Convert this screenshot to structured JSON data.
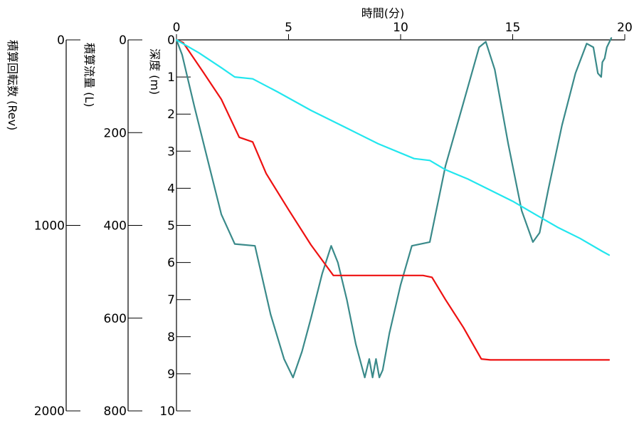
{
  "chart_data": {
    "type": "line",
    "x_axis": {
      "title": "時間(分)",
      "range": [
        0,
        20
      ],
      "ticks": [
        "0",
        "5",
        "10",
        "15",
        "20"
      ]
    },
    "y_axes": [
      {
        "id": "depth",
        "title": "深度 (m)",
        "range": [
          0,
          10
        ],
        "inverted": true,
        "ticks": [
          "0",
          "1",
          "2",
          "3",
          "4",
          "5",
          "6",
          "7",
          "8",
          "9",
          "10"
        ]
      },
      {
        "id": "flow",
        "title": "積算流量 (L)",
        "range": [
          0,
          800
        ],
        "inverted": true,
        "ticks": [
          "0",
          "200",
          "400",
          "600",
          "800"
        ]
      },
      {
        "id": "rev",
        "title": "積算回転数 (Rev)",
        "range": [
          0,
          2000
        ],
        "inverted": true,
        "ticks": [
          "0",
          "1000",
          "2000"
        ]
      }
    ],
    "series": [
      {
        "axis": "depth",
        "color": "#3a8a8a",
        "x": [
          0,
          0.25,
          0.8,
          1.5,
          2.0,
          2.6,
          3.5,
          4.2,
          4.8,
          5.2,
          5.6,
          6.0,
          6.5,
          6.9,
          7.2,
          7.6,
          8.0,
          8.4,
          8.6,
          8.75,
          8.9,
          9.05,
          9.2,
          9.5,
          10.0,
          10.5,
          11.3,
          12.0,
          12.8,
          13.5,
          13.8,
          14.2,
          14.8,
          15.4,
          15.9,
          16.2,
          16.6,
          17.2,
          17.8,
          18.3,
          18.6,
          18.8,
          18.95,
          19.0,
          19.1,
          19.2,
          19.4
        ],
        "y": [
          0,
          0.4,
          1.8,
          3.5,
          4.7,
          5.5,
          5.55,
          7.4,
          8.6,
          9.1,
          8.4,
          7.5,
          6.3,
          5.55,
          6.0,
          7.0,
          8.2,
          9.1,
          8.6,
          9.1,
          8.6,
          9.1,
          8.9,
          7.9,
          6.6,
          5.55,
          5.45,
          3.4,
          1.7,
          0.2,
          0.05,
          0.8,
          2.8,
          4.6,
          5.45,
          5.2,
          4.0,
          2.3,
          0.9,
          0.1,
          0.2,
          0.9,
          1.0,
          0.6,
          0.5,
          0.2,
          -0.05
        ]
      },
      {
        "axis": "flow",
        "color": "#ee1111",
        "x": [
          0,
          0.3,
          1.2,
          2.0,
          2.8,
          3.4,
          4.0,
          5.0,
          6.0,
          7.0,
          8.0,
          9.0,
          10.0,
          11.0,
          11.4,
          12.0,
          12.8,
          13.6,
          14.0,
          16.0,
          18.0,
          19.3
        ],
        "y": [
          0,
          6,
          70,
          128,
          210,
          220,
          288,
          366,
          442,
          508,
          508,
          508,
          508,
          508,
          512,
          560,
          620,
          688,
          690,
          690,
          690,
          690
        ]
      },
      {
        "axis": "depth",
        "color": "#22e6ee",
        "x": [
          0,
          1,
          2,
          2.6,
          3.4,
          4.5,
          6,
          7.5,
          9,
          10.6,
          11.3,
          12,
          13,
          14,
          15,
          16,
          17,
          18,
          19,
          19.3
        ],
        "y": [
          0,
          0.35,
          0.75,
          1.0,
          1.05,
          1.4,
          1.9,
          2.35,
          2.8,
          3.2,
          3.25,
          3.5,
          3.75,
          4.05,
          4.35,
          4.7,
          5.05,
          5.35,
          5.7,
          5.8
        ]
      }
    ]
  }
}
